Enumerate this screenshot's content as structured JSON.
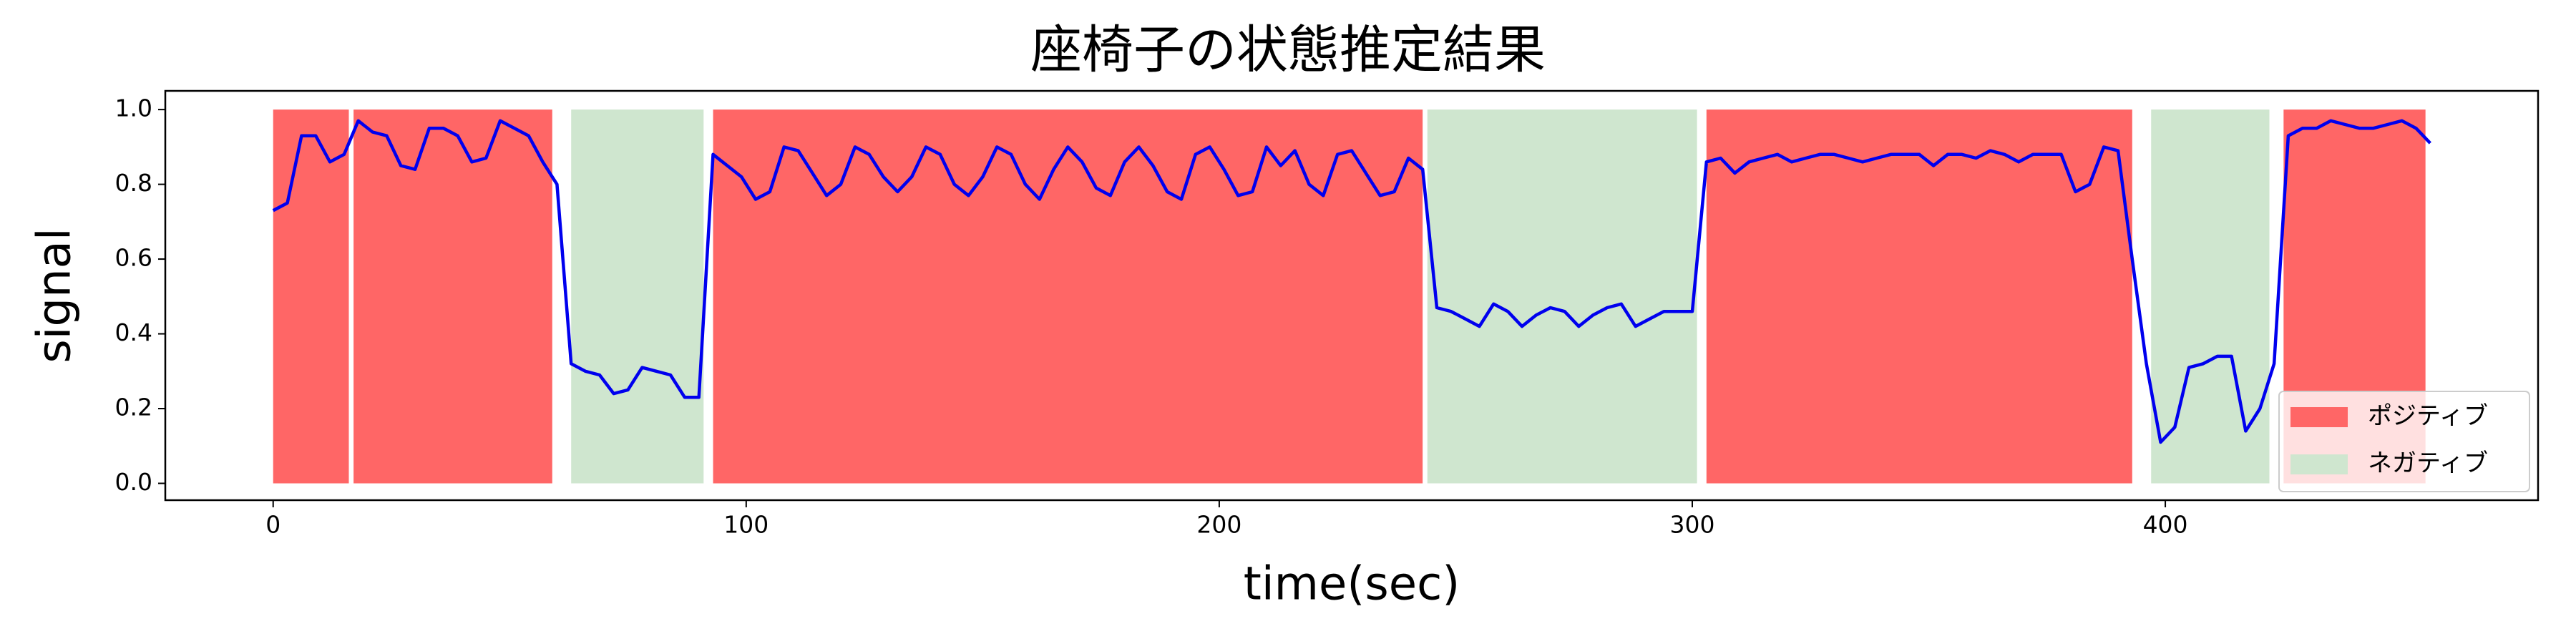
{
  "chart_data": {
    "type": "line",
    "title": "座椅子の状態推定結果",
    "x_label": "time(sec)",
    "y_label": "signal",
    "xlim": [
      -22.8,
      478.8
    ],
    "ylim": [
      -0.045,
      1.05
    ],
    "xticks": [
      0,
      100,
      200,
      300,
      400
    ],
    "yticks": [
      {
        "value": 0,
        "label": "0.0"
      },
      {
        "value": 0.2,
        "label": "0.2"
      },
      {
        "value": 0.4,
        "label": "0.4"
      },
      {
        "value": 0.6,
        "label": "0.6"
      },
      {
        "value": 0.8,
        "label": "0.8"
      },
      {
        "value": 1,
        "label": "1.0"
      }
    ],
    "legend": "lower right",
    "series": [
      {
        "name": "ポジティブ",
        "color": "#ff6666",
        "spans": [
          [
            0,
            16
          ],
          [
            17,
            59
          ],
          [
            93,
            243
          ],
          [
            303,
            393
          ],
          [
            425,
            455
          ]
        ]
      },
      {
        "name": "ネガティブ",
        "color": "#cfe6cf",
        "spans": [
          [
            63,
            91
          ],
          [
            244,
            301
          ],
          [
            397,
            422
          ]
        ]
      }
    ],
    "signal": {
      "color": "#0000ee",
      "x": [
        0,
        3,
        6,
        9,
        12,
        15,
        18,
        21,
        24,
        27,
        30,
        33,
        36,
        39,
        42,
        45,
        48,
        51,
        54,
        57,
        60,
        63,
        66,
        69,
        72,
        75,
        78,
        81,
        84,
        87,
        90,
        93,
        96,
        99,
        102,
        105,
        108,
        111,
        114,
        117,
        120,
        123,
        126,
        129,
        132,
        135,
        138,
        141,
        144,
        147,
        150,
        153,
        156,
        159,
        162,
        165,
        168,
        171,
        174,
        177,
        180,
        183,
        186,
        189,
        192,
        195,
        198,
        201,
        204,
        207,
        210,
        213,
        216,
        219,
        222,
        225,
        228,
        231,
        234,
        237,
        240,
        243,
        246,
        249,
        252,
        255,
        258,
        261,
        264,
        267,
        270,
        273,
        276,
        279,
        282,
        285,
        288,
        291,
        294,
        297,
        300,
        303,
        306,
        309,
        312,
        315,
        318,
        321,
        324,
        327,
        330,
        333,
        336,
        339,
        342,
        345,
        348,
        351,
        354,
        357,
        360,
        363,
        366,
        369,
        372,
        375,
        378,
        381,
        384,
        387,
        390,
        393,
        396,
        399,
        402,
        405,
        408,
        411,
        414,
        417,
        420,
        423,
        426,
        429,
        432,
        435,
        438,
        441,
        444,
        447,
        450,
        453,
        456
      ],
      "values": [
        0.73,
        0.75,
        0.93,
        0.93,
        0.86,
        0.88,
        0.97,
        0.94,
        0.93,
        0.85,
        0.84,
        0.95,
        0.95,
        0.93,
        0.86,
        0.87,
        0.97,
        0.95,
        0.93,
        0.86,
        0.8,
        0.32,
        0.3,
        0.29,
        0.24,
        0.25,
        0.31,
        0.3,
        0.29,
        0.23,
        0.23,
        0.88,
        0.85,
        0.82,
        0.76,
        0.78,
        0.9,
        0.89,
        0.83,
        0.77,
        0.8,
        0.9,
        0.88,
        0.82,
        0.78,
        0.82,
        0.9,
        0.88,
        0.8,
        0.77,
        0.82,
        0.9,
        0.88,
        0.8,
        0.76,
        0.84,
        0.9,
        0.86,
        0.79,
        0.77,
        0.86,
        0.9,
        0.85,
        0.78,
        0.76,
        0.88,
        0.9,
        0.84,
        0.77,
        0.78,
        0.9,
        0.85,
        0.89,
        0.8,
        0.77,
        0.88,
        0.89,
        0.83,
        0.77,
        0.78,
        0.87,
        0.84,
        0.47,
        0.46,
        0.44,
        0.42,
        0.48,
        0.46,
        0.42,
        0.45,
        0.47,
        0.46,
        0.42,
        0.45,
        0.47,
        0.48,
        0.42,
        0.44,
        0.46,
        0.46,
        0.46,
        0.86,
        0.87,
        0.83,
        0.86,
        0.87,
        0.88,
        0.86,
        0.87,
        0.88,
        0.88,
        0.87,
        0.86,
        0.87,
        0.88,
        0.88,
        0.88,
        0.85,
        0.88,
        0.88,
        0.87,
        0.89,
        0.88,
        0.86,
        0.88,
        0.88,
        0.88,
        0.78,
        0.8,
        0.9,
        0.89,
        0.6,
        0.32,
        0.11,
        0.15,
        0.31,
        0.32,
        0.34,
        0.34,
        0.14,
        0.2,
        0.32,
        0.93,
        0.95,
        0.95,
        0.97,
        0.96,
        0.95,
        0.95,
        0.96,
        0.97,
        0.95,
        0.91
      ]
    }
  }
}
